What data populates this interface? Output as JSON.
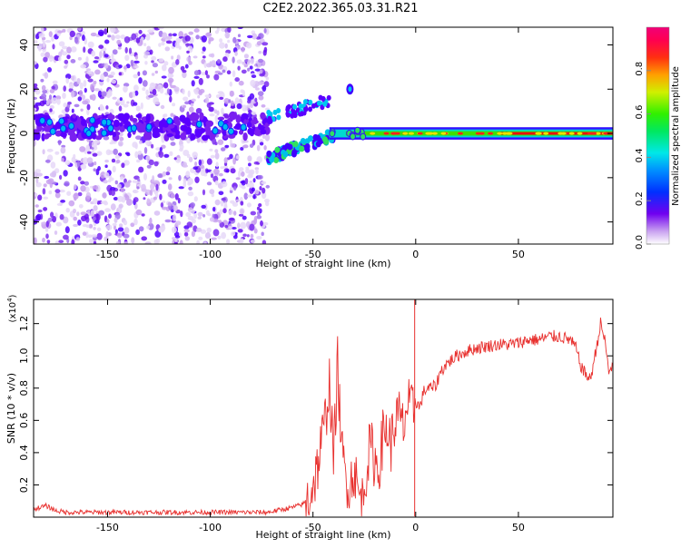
{
  "title": "C2E2.2022.365.03.31.R21",
  "chart_data": [
    {
      "type": "heatmap",
      "xlabel": "Height of straight line (km)",
      "ylabel": "Frequency (Hz)",
      "xlim": [
        -186,
        96
      ],
      "ylim": [
        -50,
        48
      ],
      "xticks": [
        -150,
        -100,
        -50,
        0,
        50
      ],
      "yticks": [
        -40,
        -20,
        0,
        20,
        40
      ],
      "grid": false,
      "colorbar": {
        "label": "Normalized spectral amplitude",
        "range": [
          0.0,
          1.0
        ],
        "ticks": [
          "0.0",
          "0.2",
          "0.4",
          "0.6",
          "0.8"
        ],
        "colormap": "rainbow (violet to magenta)"
      },
      "features": {
        "scattered_noise_region_x": [
          -186,
          -72
        ],
        "low_band_x": [
          -186,
          -72
        ],
        "low_band_freq_hz": 3,
        "rising_branch_x": [
          -72,
          -40
        ],
        "rising_branch_freq_hz": [
          -11,
          -1
        ],
        "upper_branch_x": [
          -72,
          -42
        ],
        "upper_branch_freq_hz": [
          7,
          15
        ],
        "trace_x": [
          -42,
          96
        ],
        "trace_freq_hz": 0,
        "blob_x": -32,
        "blob_freq_hz": 20
      }
    },
    {
      "type": "line",
      "xlabel": "Height of straight line (km)",
      "ylabel": "SNR (10 * v/v)",
      "y_multiplier": "(x10^4)",
      "y_multiplier_base": "(x10",
      "y_multiplier_exp": "4",
      "y_multiplier_close": ")",
      "xlim": [
        -186,
        96
      ],
      "ylim": [
        0,
        1.35
      ],
      "xticks": [
        -150,
        -100,
        -50,
        0,
        50
      ],
      "yticks": [
        0.2,
        0.4,
        0.6,
        0.8,
        1.0,
        1.2
      ],
      "ytick_labels": [
        "0.2",
        "0.4",
        "0.6",
        "0.8",
        "1.0",
        "1.2"
      ],
      "grid": false,
      "series_color": "#e8302e",
      "series": [
        {
          "x": [
            -186,
            -180,
            -175,
            -170,
            -160,
            -150,
            -140,
            -130,
            -120,
            -110,
            -100,
            -90,
            -80,
            -72,
            -60,
            -55,
            -52,
            -50,
            -48,
            -46,
            -44,
            -42,
            -40,
            -38,
            -36,
            -34,
            -32,
            -30,
            -28,
            -26,
            -24,
            -22,
            -20,
            -18,
            -16,
            -14,
            -12,
            -10,
            -8,
            -6,
            -4,
            -2,
            0,
            2,
            4,
            6,
            8,
            10,
            12,
            15,
            20,
            25,
            30,
            35,
            40,
            45,
            50,
            55,
            60,
            65,
            70,
            75,
            78,
            80,
            82,
            85,
            88,
            90,
            92,
            94,
            96
          ],
          "values": [
            0.05,
            0.07,
            0.04,
            0.03,
            0.03,
            0.03,
            0.03,
            0.03,
            0.03,
            0.03,
            0.03,
            0.03,
            0.03,
            0.03,
            0.06,
            0.08,
            0.12,
            0.2,
            0.3,
            0.45,
            0.6,
            0.85,
            0.35,
            0.95,
            0.4,
            0.25,
            0.2,
            0.3,
            0.15,
            0.1,
            0.3,
            0.45,
            0.35,
            0.3,
            0.5,
            0.55,
            0.45,
            0.6,
            0.62,
            0.55,
            0.7,
            0.65,
            0.72,
            0.68,
            0.78,
            0.8,
            0.8,
            0.82,
            0.9,
            0.95,
            1.0,
            1.03,
            1.05,
            1.06,
            1.07,
            1.07,
            1.08,
            1.1,
            1.1,
            1.12,
            1.12,
            1.1,
            1.05,
            0.95,
            0.9,
            0.85,
            1.05,
            1.2,
            1.1,
            0.9,
            0.95
          ]
        }
      ]
    }
  ]
}
